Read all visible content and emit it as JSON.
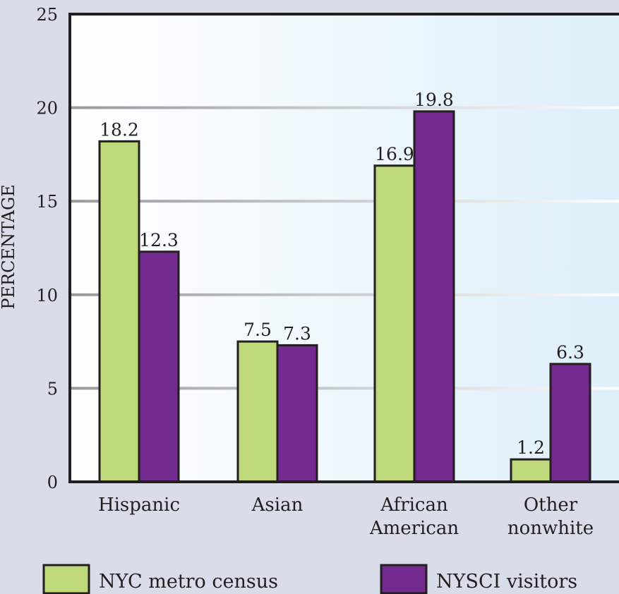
{
  "chart_data": {
    "type": "bar",
    "title": "",
    "xlabel": "",
    "ylabel": "PERCENTAGE",
    "ylim": [
      0,
      25
    ],
    "yticks": [
      0,
      5,
      10,
      15,
      20,
      25
    ],
    "grid": true,
    "categories": [
      [
        "Hispanic"
      ],
      [
        "Asian"
      ],
      [
        "African",
        "American"
      ],
      [
        "Other",
        "nonwhite"
      ]
    ],
    "series": [
      {
        "name": "NYC metro census",
        "color": "#bdd97a",
        "values": [
          18.2,
          7.5,
          16.9,
          1.2
        ]
      },
      {
        "name": "NYSCI visitors",
        "color": "#722a8e",
        "values": [
          12.3,
          7.3,
          19.8,
          6.3
        ]
      }
    ],
    "legend_position": "bottom"
  }
}
